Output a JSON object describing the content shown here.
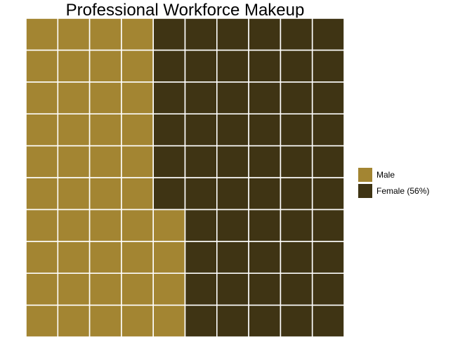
{
  "chart_data": {
    "type": "waffle",
    "title": "Professional Workforce Makeup",
    "rows": 10,
    "columns": 10,
    "total_cells": 100,
    "fill_order": "column-major, bottom-to-top, left-to-right",
    "series": [
      {
        "name": "Male",
        "value": 44,
        "color": "#A38532"
      },
      {
        "name": "Female (56%)",
        "value": 56,
        "color": "#3F3414"
      }
    ],
    "cell_border_color": "#FFFFFF",
    "grid": false,
    "legend_position": "right"
  }
}
